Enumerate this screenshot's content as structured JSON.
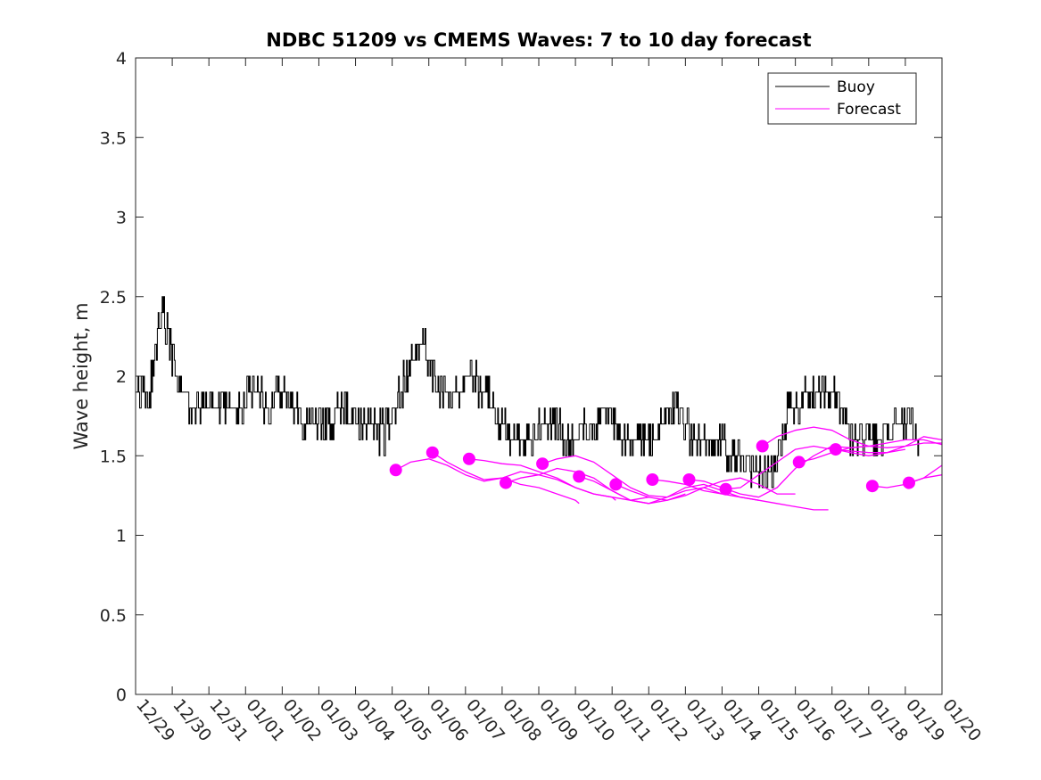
{
  "chart_data": {
    "type": "line",
    "title": "NDBC 51209 vs CMEMS Waves: 7 to 10 day forecast",
    "xlabel": "",
    "ylabel": "Wave height, m",
    "ylim": [
      0,
      4
    ],
    "yticks": [
      0,
      0.5,
      1,
      1.5,
      2,
      2.5,
      3,
      3.5,
      4
    ],
    "ytick_labels": [
      "0",
      "0.5",
      "1",
      "1.5",
      "2",
      "2.5",
      "3",
      "3.5",
      "4"
    ],
    "xlim": [
      0,
      22
    ],
    "xtick_labels": [
      "12/29",
      "12/30",
      "12/31",
      "01/01",
      "01/02",
      "01/03",
      "01/04",
      "01/05",
      "01/06",
      "01/07",
      "01/08",
      "01/09",
      "01/10",
      "01/11",
      "01/12",
      "01/13",
      "01/14",
      "01/15",
      "01/16",
      "01/17",
      "01/18",
      "01/19",
      "01/20"
    ],
    "x_units": "days since 12/29",
    "legend": {
      "location": "top-right",
      "entries": [
        "Buoy",
        "Forecast"
      ]
    },
    "colors": {
      "buoy": "#000000",
      "forecast": "#ff00ff",
      "axes": "#262626"
    },
    "series": [
      {
        "name": "Buoy",
        "x": [
          0.0,
          0.3,
          0.45,
          0.55,
          0.7,
          0.85,
          1.0,
          1.2,
          1.5,
          2.0,
          2.5,
          3.0,
          3.3,
          3.6,
          4.0,
          4.2,
          4.5,
          4.8,
          5.0,
          5.3,
          5.6,
          6.0,
          6.3,
          6.6,
          6.9,
          7.2,
          7.5,
          7.8,
          8.0,
          8.2,
          8.5,
          8.8,
          9.0,
          9.3,
          9.6,
          9.9,
          10.3,
          10.6,
          11.0,
          11.3,
          11.6,
          11.9,
          12.2,
          12.6,
          12.9,
          13.2,
          13.5,
          13.9,
          14.3,
          14.6,
          14.9,
          15.2,
          15.5,
          15.8,
          16.1,
          16.4,
          16.7,
          17.0,
          17.3,
          17.5,
          17.8,
          18.2,
          18.6,
          18.9,
          19.2,
          19.5,
          19.7,
          20.0,
          20.3,
          20.6,
          20.9,
          21.2,
          21.4
        ],
        "values": [
          1.9,
          1.85,
          2.0,
          2.2,
          2.4,
          2.3,
          2.1,
          1.95,
          1.8,
          1.75,
          1.8,
          1.85,
          1.9,
          1.8,
          1.9,
          1.85,
          1.75,
          1.68,
          1.65,
          1.7,
          1.8,
          1.7,
          1.68,
          1.65,
          1.65,
          1.9,
          2.05,
          2.2,
          2.1,
          1.95,
          1.9,
          1.9,
          2.0,
          1.95,
          1.9,
          1.7,
          1.6,
          1.6,
          1.65,
          1.7,
          1.65,
          1.6,
          1.7,
          1.75,
          1.75,
          1.6,
          1.55,
          1.55,
          1.65,
          1.8,
          1.75,
          1.6,
          1.6,
          1.55,
          1.55,
          1.5,
          1.45,
          1.42,
          1.4,
          1.5,
          1.8,
          1.85,
          1.9,
          1.95,
          1.85,
          1.6,
          1.55,
          1.6,
          1.6,
          1.65,
          1.7,
          1.65,
          1.55
        ]
      },
      {
        "name": "Forecast",
        "runs": [
          {
            "x": [
              7.1,
              7.5,
              8.0,
              8.5,
              9.0,
              9.5,
              10.0,
              10.5,
              11.0,
              11.5,
              12.0,
              12.1
            ],
            "values": [
              1.41,
              1.46,
              1.48,
              1.44,
              1.38,
              1.34,
              1.36,
              1.32,
              1.3,
              1.26,
              1.22,
              1.2
            ]
          },
          {
            "x": [
              8.1,
              8.5,
              9.0,
              9.5,
              10.0,
              10.5,
              11.0,
              11.5,
              12.0,
              12.5,
              13.0,
              13.1
            ],
            "values": [
              1.52,
              1.46,
              1.4,
              1.35,
              1.36,
              1.4,
              1.38,
              1.35,
              1.3,
              1.26,
              1.24,
              1.22
            ]
          },
          {
            "x": [
              9.1,
              9.5,
              10.0,
              10.5,
              11.0,
              11.5,
              12.0,
              12.5,
              13.0,
              13.5,
              14.0
            ],
            "values": [
              1.48,
              1.47,
              1.45,
              1.44,
              1.4,
              1.36,
              1.3,
              1.26,
              1.24,
              1.22,
              1.24
            ]
          },
          {
            "x": [
              10.1,
              10.5,
              11.0,
              11.5,
              12.0,
              12.5,
              13.0,
              13.5,
              14.0,
              14.5,
              15.0
            ],
            "values": [
              1.33,
              1.36,
              1.38,
              1.42,
              1.4,
              1.36,
              1.28,
              1.22,
              1.2,
              1.22,
              1.26
            ]
          },
          {
            "x": [
              11.1,
              11.5,
              12.0,
              12.5,
              13.0,
              13.5,
              14.0,
              14.5,
              15.0,
              15.5,
              16.0
            ],
            "values": [
              1.45,
              1.48,
              1.5,
              1.46,
              1.38,
              1.3,
              1.25,
              1.24,
              1.28,
              1.3,
              1.26
            ]
          },
          {
            "x": [
              12.1,
              12.5,
              13.0,
              13.5,
              14.0,
              14.5,
              15.0,
              15.5,
              16.0,
              16.5,
              17.0
            ],
            "values": [
              1.37,
              1.34,
              1.28,
              1.22,
              1.2,
              1.24,
              1.3,
              1.32,
              1.28,
              1.24,
              1.22
            ]
          },
          {
            "x": [
              13.1,
              13.5,
              14.0,
              14.5,
              15.0,
              15.5,
              16.0,
              16.5,
              17.0,
              17.5,
              18.0
            ],
            "values": [
              1.32,
              1.28,
              1.24,
              1.22,
              1.25,
              1.3,
              1.34,
              1.36,
              1.32,
              1.26,
              1.26
            ]
          },
          {
            "x": [
              14.1,
              14.5,
              15.0,
              15.5,
              16.0,
              16.5,
              17.0,
              17.5,
              18.0,
              18.5,
              18.9
            ],
            "values": [
              1.35,
              1.34,
              1.32,
              1.28,
              1.26,
              1.24,
              1.22,
              1.2,
              1.18,
              1.16,
              1.16
            ]
          },
          {
            "x": [
              15.1,
              15.5,
              16.0,
              16.5,
              17.0,
              17.5,
              18.0,
              18.5,
              19.0,
              19.5,
              20.0
            ],
            "values": [
              1.35,
              1.34,
              1.3,
              1.26,
              1.24,
              1.3,
              1.42,
              1.5,
              1.56,
              1.55,
              1.56
            ]
          },
          {
            "x": [
              16.1,
              16.5,
              17.0,
              17.5,
              18.0,
              18.5,
              19.0,
              19.5,
              20.0,
              20.5,
              21.0
            ],
            "values": [
              1.29,
              1.3,
              1.38,
              1.46,
              1.54,
              1.56,
              1.54,
              1.53,
              1.52,
              1.52,
              1.54
            ]
          },
          {
            "x": [
              17.1,
              17.5,
              18.0,
              18.5,
              19.0,
              19.5,
              20.0,
              20.5,
              21.0,
              21.5,
              22.0
            ],
            "values": [
              1.56,
              1.62,
              1.66,
              1.68,
              1.66,
              1.6,
              1.56,
              1.58,
              1.6,
              1.6,
              1.57
            ]
          },
          {
            "x": [
              18.1,
              18.5,
              19.0,
              19.5,
              20.0,
              20.5,
              21.0,
              21.5,
              22.0
            ],
            "values": [
              1.46,
              1.48,
              1.52,
              1.55,
              1.56,
              1.55,
              1.56,
              1.58,
              1.58
            ]
          },
          {
            "x": [
              19.1,
              19.5,
              20.0,
              20.5,
              21.0,
              21.5,
              22.0
            ],
            "values": [
              1.54,
              1.52,
              1.5,
              1.52,
              1.56,
              1.62,
              1.6
            ]
          },
          {
            "x": [
              20.1,
              20.5,
              21.0,
              21.5,
              22.0
            ],
            "values": [
              1.31,
              1.3,
              1.32,
              1.36,
              1.44
            ]
          },
          {
            "x": [
              21.1,
              21.5,
              22.0
            ],
            "values": [
              1.33,
              1.36,
              1.38
            ]
          }
        ],
        "markers": {
          "x": [
            7.1,
            8.1,
            9.1,
            10.1,
            11.1,
            12.1,
            13.1,
            14.1,
            15.1,
            16.1,
            17.1,
            18.1,
            19.1,
            20.1,
            21.1
          ],
          "values": [
            1.41,
            1.52,
            1.48,
            1.33,
            1.45,
            1.37,
            1.32,
            1.35,
            1.35,
            1.29,
            1.56,
            1.46,
            1.54,
            1.31,
            1.33
          ]
        }
      }
    ]
  }
}
